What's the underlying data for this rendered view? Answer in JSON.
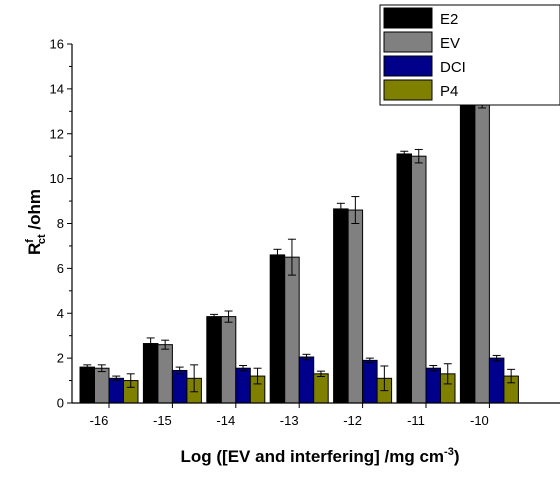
{
  "chart_data": {
    "type": "bar",
    "title": "",
    "xlabel": {
      "main": "Log ([EV and interfering] /mg cm",
      "sup": "-3",
      "tail": ")"
    },
    "ylabel": {
      "main": "R",
      "sup": "f",
      "sub": "ct",
      "tail": " /ohm"
    },
    "categories": [
      "-16",
      "-15",
      "-14",
      "-13",
      "-12",
      "-11",
      "-10"
    ],
    "ylim": [
      0,
      16
    ],
    "yticks": [
      "0",
      "2",
      "4",
      "6",
      "8",
      "10",
      "12",
      "14",
      "16"
    ],
    "grid": false,
    "legend_position": "top-right",
    "series": [
      {
        "name": "E2",
        "color": "#000000",
        "values": [
          1.6,
          2.65,
          3.85,
          6.6,
          8.65,
          11.1,
          13.7
        ],
        "errors": [
          0.1,
          0.25,
          0.1,
          0.25,
          0.25,
          0.12,
          0.12
        ]
      },
      {
        "name": "EV",
        "color": "#808080",
        "values": [
          1.55,
          2.6,
          3.85,
          6.5,
          8.6,
          11.0,
          13.55
        ],
        "errors": [
          0.15,
          0.2,
          0.25,
          0.8,
          0.6,
          0.3,
          0.4
        ]
      },
      {
        "name": "DCI",
        "color": "#00008b",
        "values": [
          1.1,
          1.45,
          1.55,
          2.05,
          1.9,
          1.55,
          2.0
        ],
        "errors": [
          0.1,
          0.15,
          0.12,
          0.12,
          0.1,
          0.12,
          0.12
        ]
      },
      {
        "name": "P4",
        "color": "#808000",
        "values": [
          1.0,
          1.1,
          1.2,
          1.3,
          1.1,
          1.3,
          1.2
        ],
        "errors": [
          0.3,
          0.6,
          0.35,
          0.12,
          0.55,
          0.45,
          0.3
        ]
      }
    ]
  }
}
